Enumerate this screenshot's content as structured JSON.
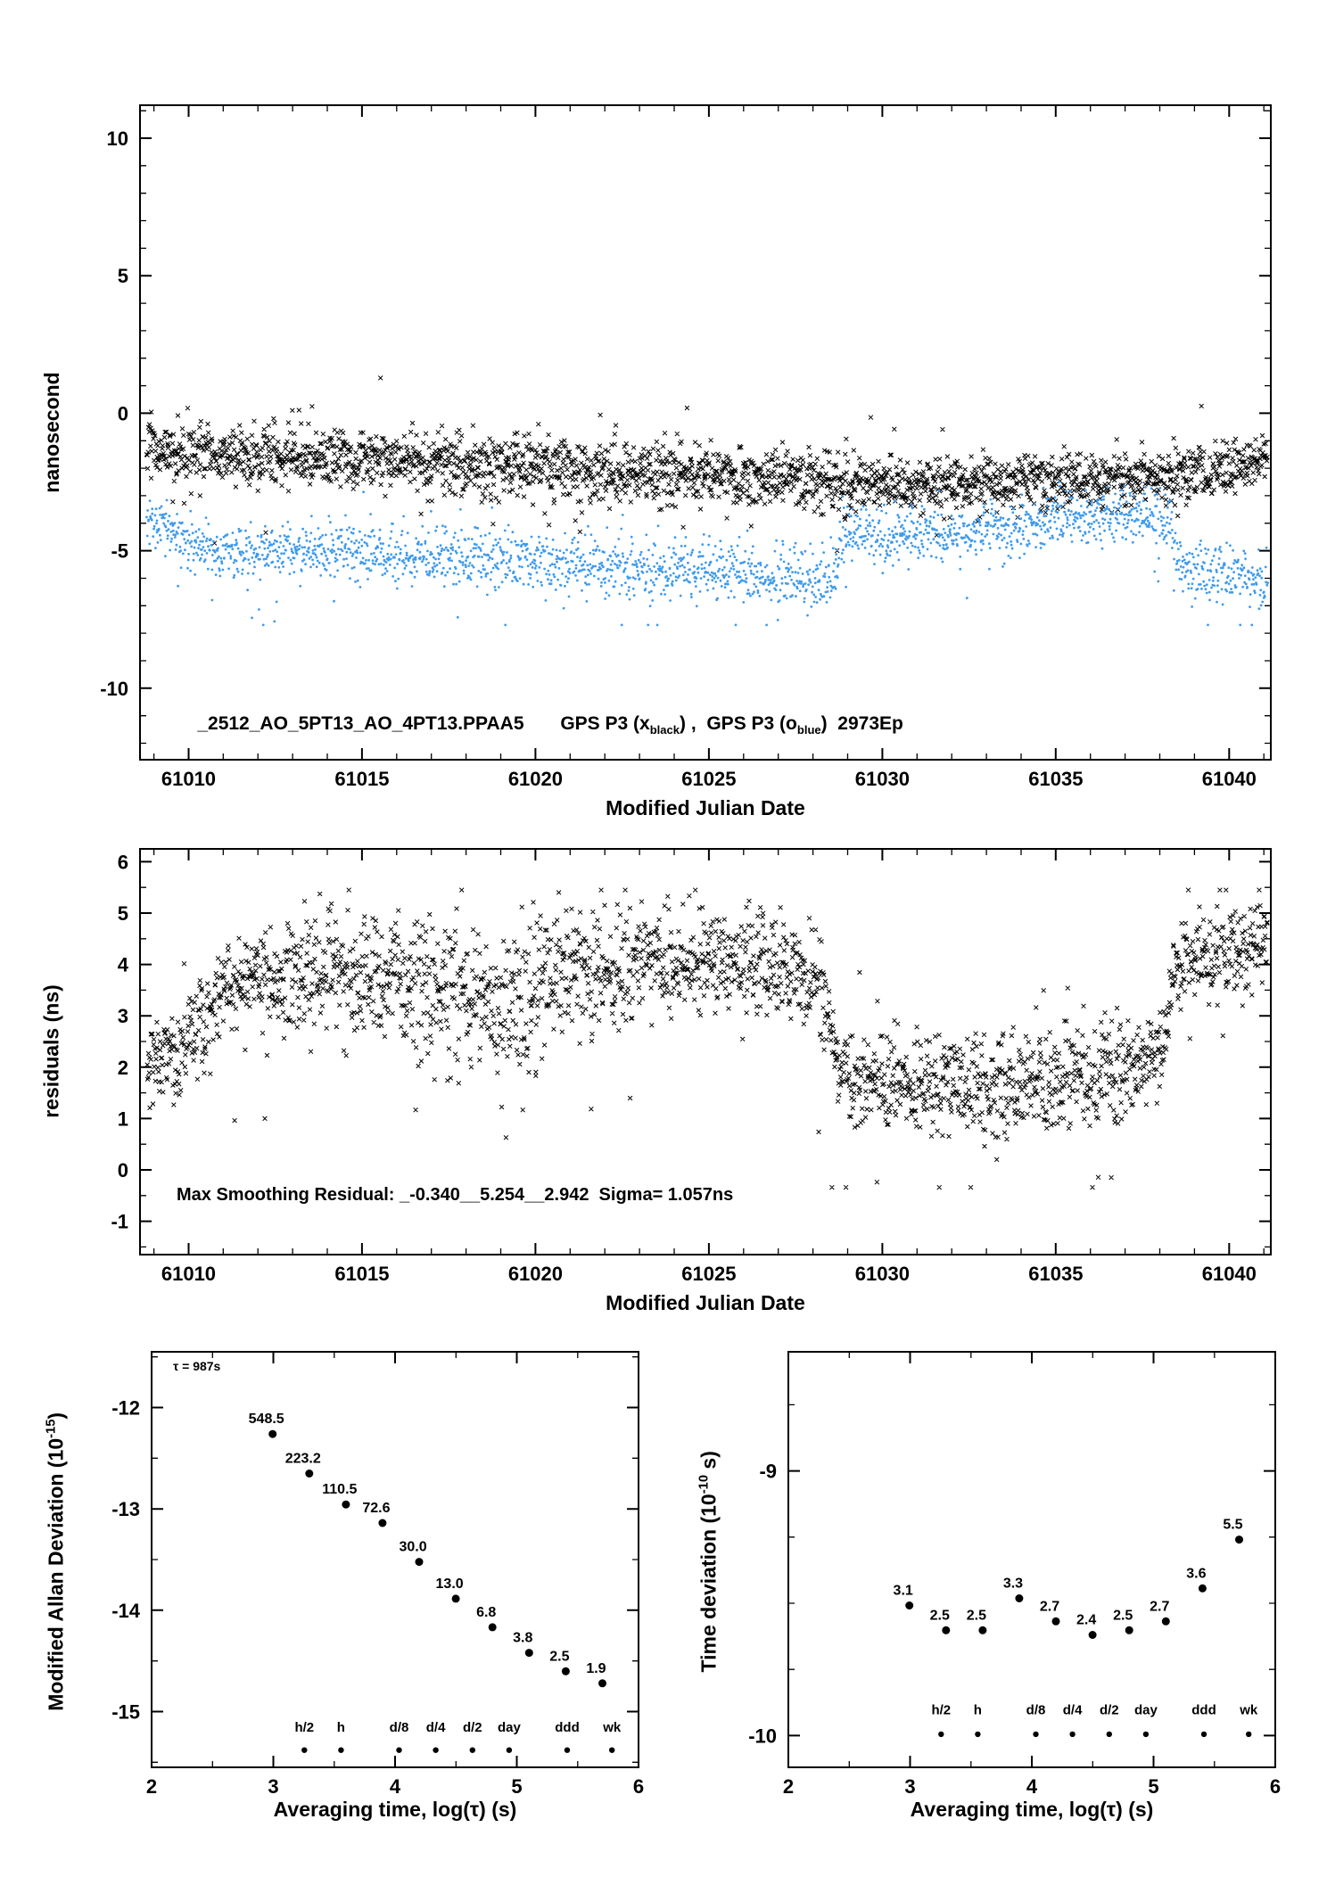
{
  "colors": {
    "black": "#000000",
    "blue": "#3f9bec",
    "red": "#e60000",
    "background": "#ffffff"
  },
  "chart_data": [
    {
      "id": "top",
      "type": "scatter",
      "xlabel": "Modified Julian Date",
      "ylabel": "nanosecond",
      "xlim": [
        61008.6,
        61041.2
      ],
      "ylim": [
        -12.6,
        11.2
      ],
      "xticks": [
        61010,
        61015,
        61020,
        61025,
        61030,
        61035,
        61040
      ],
      "yticks": [
        -10,
        -5,
        0,
        5,
        10
      ],
      "x_minor": 1,
      "y_minor": 1,
      "annotation": {
        "parts": [
          "_2512_AO_5PT13_AO_4PT13.PPAA5       GPS P3 (x",
          "black",
          ") ,  GPS P3 (o",
          "blue",
          ")  2973Ep"
        ],
        "x": 61010.3,
        "y": -10.8
      },
      "series": [
        {
          "name": "GPS P3 x black",
          "marker": "x",
          "color": "#000000",
          "n": 2400,
          "seed": 101,
          "xrange": [
            61008.8,
            61041.1
          ],
          "tail_p": 0.025,
          "tail_shift": 0.3,
          "clip": [
            -5.0,
            1.35
          ],
          "trend": [
            [
              61008.8,
              -1.15,
              0.5
            ],
            [
              61010,
              -1.5,
              0.55
            ],
            [
              61013,
              -1.6,
              0.55
            ],
            [
              61016,
              -1.72,
              0.55
            ],
            [
              61019,
              -1.95,
              0.6
            ],
            [
              61022,
              -2.1,
              0.55
            ],
            [
              61025,
              -2.2,
              0.55
            ],
            [
              61028,
              -2.4,
              0.55
            ],
            [
              61030,
              -2.55,
              0.5
            ],
            [
              61032,
              -2.6,
              0.5
            ],
            [
              61034,
              -2.5,
              0.5
            ],
            [
              61036,
              -2.4,
              0.5
            ],
            [
              61038,
              -2.3,
              0.5
            ],
            [
              61039.5,
              -2.15,
              0.5
            ],
            [
              61040.6,
              -1.9,
              0.48
            ],
            [
              61041.1,
              -1.5,
              0.45
            ]
          ]
        },
        {
          "name": "GPS P3 o blue",
          "marker": "dot",
          "color": "#3f9bec",
          "n": 2400,
          "seed": 202,
          "xrange": [
            61008.8,
            61041.1
          ],
          "tail_p": 0.035,
          "tail_shift": -0.8,
          "clip": [
            -7.7,
            -2.3
          ],
          "trend": [
            [
              61008.8,
              -3.8,
              0.42
            ],
            [
              61009.6,
              -4.4,
              0.45
            ],
            [
              61010.6,
              -4.9,
              0.45
            ],
            [
              61012,
              -5.0,
              0.5
            ],
            [
              61014,
              -5.0,
              0.5
            ],
            [
              61016,
              -5.1,
              0.5
            ],
            [
              61018,
              -5.25,
              0.52
            ],
            [
              61020,
              -5.4,
              0.55
            ],
            [
              61022,
              -5.6,
              0.58
            ],
            [
              61024,
              -5.75,
              0.6
            ],
            [
              61026,
              -5.85,
              0.6
            ],
            [
              61028.6,
              -5.9,
              0.6
            ],
            [
              61028.9,
              -4.35,
              0.45
            ],
            [
              61030.5,
              -4.45,
              0.45
            ],
            [
              61032,
              -4.35,
              0.48
            ],
            [
              61033.5,
              -4.15,
              0.5
            ],
            [
              61035,
              -3.9,
              0.5
            ],
            [
              61036.5,
              -3.7,
              0.5
            ],
            [
              61037.8,
              -3.85,
              0.5
            ],
            [
              61038.3,
              -3.95,
              0.5
            ],
            [
              61038.55,
              -5.55,
              0.5
            ],
            [
              61040,
              -5.85,
              0.55
            ],
            [
              61041.1,
              -6.0,
              0.55
            ]
          ]
        }
      ]
    },
    {
      "id": "residuals",
      "type": "scatter",
      "xlabel": "Modified Julian Date",
      "ylabel": "residuals (ns)",
      "xlim": [
        61008.6,
        61041.2
      ],
      "ylim": [
        -1.65,
        6.25
      ],
      "xticks": [
        61010,
        61015,
        61020,
        61025,
        61030,
        61035,
        61040
      ],
      "yticks": [
        -1,
        0,
        1,
        2,
        3,
        4,
        5,
        6
      ],
      "x_minor": 1,
      "y_minor": 0.5,
      "annotation": {
        "text": "Max Smoothing Residual: _-0.340__5.254__2.942  Sigma= 1.057ns",
        "x": 61010.3,
        "y": -0.62
      },
      "series": [
        {
          "name": "smoothing residuals",
          "marker": "x",
          "color": "#000000",
          "n": 2400,
          "seed": 303,
          "xrange": [
            61008.8,
            61041.1
          ],
          "tail_p": 0.03,
          "tail_shift": 0,
          "clip": [
            -0.34,
            5.45
          ],
          "trend": [
            [
              61008.8,
              2.2,
              0.4
            ],
            [
              61009.6,
              2.1,
              0.45
            ],
            [
              61010.6,
              3.1,
              0.5
            ],
            [
              61011.6,
              3.7,
              0.5
            ],
            [
              61013,
              3.6,
              0.55
            ],
            [
              61014.5,
              3.8,
              0.6
            ],
            [
              61016,
              3.85,
              0.7
            ],
            [
              61017,
              3.4,
              0.75
            ],
            [
              61018.5,
              3.35,
              0.8
            ],
            [
              61020,
              3.35,
              0.8
            ],
            [
              61021,
              3.9,
              0.6
            ],
            [
              61022.5,
              4.0,
              0.5
            ],
            [
              61024,
              4.05,
              0.5
            ],
            [
              61025.5,
              4.1,
              0.5
            ],
            [
              61027,
              3.95,
              0.5
            ],
            [
              61028.3,
              3.5,
              0.5
            ],
            [
              61028.75,
              1.95,
              0.45
            ],
            [
              61030,
              1.7,
              0.45
            ],
            [
              61031.5,
              1.65,
              0.45
            ],
            [
              61033,
              1.6,
              0.5
            ],
            [
              61034.5,
              1.7,
              0.5
            ],
            [
              61036,
              1.85,
              0.5
            ],
            [
              61037.5,
              2.05,
              0.5
            ],
            [
              61038.15,
              2.5,
              0.45
            ],
            [
              61038.45,
              4.05,
              0.42
            ],
            [
              61039.5,
              4.2,
              0.42
            ],
            [
              61040.3,
              4.35,
              0.42
            ],
            [
              61041.1,
              4.4,
              0.42
            ]
          ],
          "outliers": [
            [
              61036.6,
              -0.15
            ],
            [
              61033.3,
              0.2
            ],
            [
              61012.2,
              1.0
            ]
          ]
        }
      ]
    },
    {
      "id": "mdev",
      "type": "points",
      "xlabel": "Averaging time, log(τ) (s)",
      "ylabel_parts": [
        "Modified Allan Deviation (10",
        "-15",
        ")"
      ],
      "note": "τ = 987s",
      "xlim": [
        2,
        6
      ],
      "ylim": [
        -15.55,
        -11.45
      ],
      "xticks": [
        2,
        3,
        4,
        5,
        6
      ],
      "yticks": [
        -15,
        -14,
        -13,
        -12
      ],
      "x_minor": 0.5,
      "y_minor": 0.5,
      "exp_offset": -15,
      "points": [
        {
          "log_tau": 2.994,
          "value": 548.5,
          "label": "548.5"
        },
        {
          "log_tau": 3.295,
          "value": 223.2,
          "label": "223.2"
        },
        {
          "log_tau": 3.596,
          "value": 110.5,
          "label": "110.5"
        },
        {
          "log_tau": 3.897,
          "value": 72.6,
          "label": "72.6"
        },
        {
          "log_tau": 4.198,
          "value": 30.0,
          "label": "30.0"
        },
        {
          "log_tau": 4.499,
          "value": 13.0,
          "label": "13.0"
        },
        {
          "log_tau": 4.8,
          "value": 6.8,
          "label": "6.8"
        },
        {
          "log_tau": 5.101,
          "value": 3.8,
          "label": "3.8"
        },
        {
          "log_tau": 5.402,
          "value": 2.5,
          "label": "2.5"
        },
        {
          "log_tau": 5.703,
          "value": 1.9,
          "label": "1.9"
        }
      ],
      "time_marks": {
        "labels": [
          {
            "label": "h/2",
            "log_tau": 3.255
          },
          {
            "label": "h",
            "log_tau": 3.556
          },
          {
            "label": "d/8",
            "log_tau": 4.033
          },
          {
            "label": "d/4",
            "log_tau": 4.334
          },
          {
            "label": "d/2",
            "log_tau": 4.636
          },
          {
            "label": "day",
            "log_tau": 4.937
          },
          {
            "label": "ddd",
            "log_tau": 5.414
          },
          {
            "label": "wk",
            "log_tau": 5.782
          }
        ],
        "label_y": -15.2,
        "dot_y": -15.38
      }
    },
    {
      "id": "tdev",
      "type": "points",
      "xlabel": "Averaging time, log(τ) (s)",
      "ylabel_parts": [
        "Time deviation (10",
        "-10",
        " s)"
      ],
      "xlim": [
        2,
        6
      ],
      "ylim": [
        -10.12,
        -8.55
      ],
      "xticks": [
        2,
        3,
        4,
        5,
        6
      ],
      "yticks": [
        -10,
        -9
      ],
      "x_minor": 0.5,
      "y_minor": 0.25,
      "exp_offset": -10,
      "points": [
        {
          "log_tau": 2.994,
          "value": 3.1,
          "label": "3.1"
        },
        {
          "log_tau": 3.295,
          "value": 2.5,
          "label": "2.5"
        },
        {
          "log_tau": 3.596,
          "value": 2.5,
          "label": "2.5"
        },
        {
          "log_tau": 3.897,
          "value": 3.3,
          "label": "3.3"
        },
        {
          "log_tau": 4.198,
          "value": 2.7,
          "label": "2.7"
        },
        {
          "log_tau": 4.499,
          "value": 2.4,
          "label": "2.4"
        },
        {
          "log_tau": 4.8,
          "value": 2.5,
          "label": "2.5"
        },
        {
          "log_tau": 5.101,
          "value": 2.7,
          "label": "2.7"
        },
        {
          "log_tau": 5.402,
          "value": 3.6,
          "label": "3.6"
        },
        {
          "log_tau": 5.703,
          "value": 5.5,
          "label": "5.5"
        }
      ],
      "time_marks": {
        "labels": [
          {
            "label": "h/2",
            "log_tau": 3.255
          },
          {
            "label": "h",
            "log_tau": 3.556
          },
          {
            "label": "d/8",
            "log_tau": 4.033
          },
          {
            "label": "d/4",
            "log_tau": 4.334
          },
          {
            "label": "d/2",
            "log_tau": 4.636
          },
          {
            "label": "day",
            "log_tau": 4.937
          },
          {
            "label": "ddd",
            "log_tau": 5.414
          },
          {
            "label": "wk",
            "log_tau": 5.782
          }
        ],
        "label_y": -9.92,
        "dot_y": -9.995
      }
    }
  ]
}
